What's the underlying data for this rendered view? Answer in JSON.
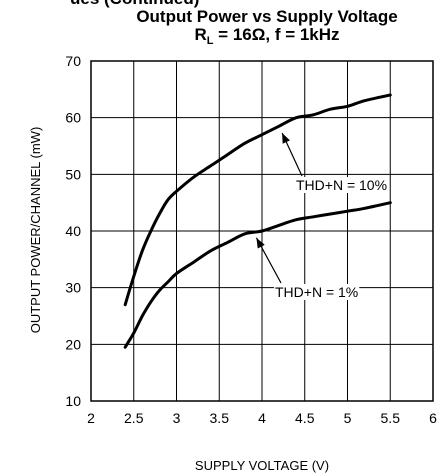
{
  "header_fragment": "ues (Continued)",
  "chart_data": {
    "type": "line",
    "title": "Output Power vs Supply Voltage",
    "subtitle": "Rₗ = 16Ω, f = 1kHz",
    "subtitle_prefix": "R",
    "subtitle_sub": "L",
    "subtitle_suffix": " = 16Ω, f = 1kHz",
    "xlabel": "SUPPLY VOLTAGE (V)",
    "ylabel": "OUTPUT POWER/CHANNEL (mW)",
    "xlim": [
      2,
      6
    ],
    "ylim": [
      10,
      70
    ],
    "xticks": [
      2,
      2.5,
      3,
      3.5,
      4,
      4.5,
      5,
      5.5,
      6
    ],
    "xtick_labels": [
      "2",
      "2.5",
      "3",
      "3.5",
      "4",
      "4.5",
      "5",
      "5.5",
      "6"
    ],
    "yticks": [
      10,
      20,
      30,
      40,
      50,
      60,
      70
    ],
    "ytick_labels": [
      "10",
      "20",
      "30",
      "40",
      "50",
      "60",
      "70"
    ],
    "grid": true,
    "series": [
      {
        "name": "THD+N = 10%",
        "x": [
          2.4,
          2.5,
          2.6,
          2.7,
          2.8,
          2.9,
          3.0,
          3.2,
          3.4,
          3.6,
          3.8,
          4.0,
          4.2,
          4.4,
          4.6,
          4.8,
          5.0,
          5.2,
          5.5
        ],
        "y": [
          27.0,
          32.0,
          36.5,
          40.0,
          43.0,
          45.5,
          47.0,
          49.5,
          51.5,
          53.5,
          55.5,
          57.0,
          58.5,
          60.0,
          60.5,
          61.5,
          62.0,
          63.0,
          64.0
        ]
      },
      {
        "name": "THD+N = 1%",
        "x": [
          2.4,
          2.5,
          2.6,
          2.7,
          2.8,
          2.9,
          3.0,
          3.2,
          3.4,
          3.6,
          3.8,
          4.0,
          4.2,
          4.4,
          4.6,
          4.8,
          5.0,
          5.2,
          5.5
        ],
        "y": [
          19.5,
          22.0,
          25.0,
          27.5,
          29.5,
          31.0,
          32.5,
          34.5,
          36.5,
          38.0,
          39.5,
          40.0,
          41.0,
          42.0,
          42.5,
          43.0,
          43.5,
          44.0,
          45.0
        ]
      }
    ],
    "annotations": [
      {
        "text": "THD+N = 10%",
        "series": 0,
        "point_x": 4.2,
        "point_y": 58.0
      },
      {
        "text": "THD+N = 1%",
        "series": 1,
        "point_x": 3.9,
        "point_y": 39.5
      }
    ]
  }
}
